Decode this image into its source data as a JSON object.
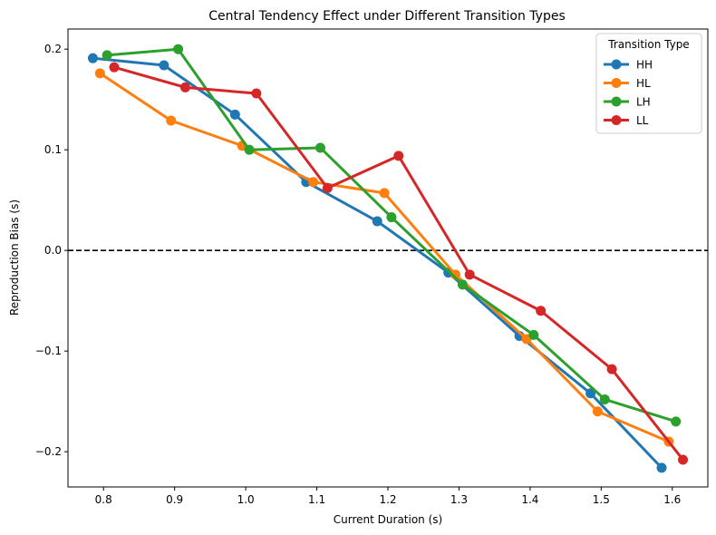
{
  "chart_data": {
    "type": "line",
    "title": "Central Tendency Effect under Different Transition Types",
    "xlabel": "Current Duration (s)",
    "ylabel": "Reproduction Bias (s)",
    "xlim": [
      0.75,
      1.65
    ],
    "ylim": [
      -0.235,
      0.22
    ],
    "xticks": [
      0.8,
      0.9,
      1.0,
      1.1,
      1.2,
      1.3,
      1.4,
      1.5,
      1.6
    ],
    "xtick_labels": [
      "0.8",
      "0.9",
      "1.0",
      "1.1",
      "1.2",
      "1.3",
      "1.4",
      "1.5",
      "1.6"
    ],
    "yticks": [
      -0.2,
      -0.1,
      0.0,
      0.1,
      0.2
    ],
    "ytick_labels": [
      "−0.2",
      "−0.1",
      "0.0",
      "0.1",
      "0.2"
    ],
    "grid": false,
    "reference_line": {
      "y": 0.0,
      "style": "dashed",
      "color": "#000000"
    },
    "legend": {
      "title": "Transition Type",
      "placement": "top-right"
    },
    "series": [
      {
        "name": "HH",
        "color": "#1f77b4",
        "x": [
          0.785,
          0.885,
          0.985,
          1.085,
          1.185,
          1.285,
          1.385,
          1.485,
          1.585
        ],
        "y": [
          0.191,
          0.184,
          0.135,
          0.068,
          0.029,
          -0.022,
          -0.085,
          -0.142,
          -0.216
        ]
      },
      {
        "name": "HL",
        "color": "#ff7f0e",
        "x": [
          0.795,
          0.895,
          0.995,
          1.095,
          1.195,
          1.295,
          1.395,
          1.495,
          1.595
        ],
        "y": [
          0.176,
          0.129,
          0.104,
          0.068,
          0.057,
          -0.024,
          -0.088,
          -0.16,
          -0.19
        ]
      },
      {
        "name": "LH",
        "color": "#2ca02c",
        "x": [
          0.805,
          0.905,
          1.005,
          1.105,
          1.205,
          1.305,
          1.405,
          1.505,
          1.605
        ],
        "y": [
          0.194,
          0.2,
          0.1,
          0.102,
          0.033,
          -0.034,
          -0.084,
          -0.148,
          -0.17
        ]
      },
      {
        "name": "LL",
        "color": "#d62728",
        "x": [
          0.815,
          0.915,
          1.015,
          1.115,
          1.215,
          1.315,
          1.415,
          1.515,
          1.615
        ],
        "y": [
          0.182,
          0.162,
          0.156,
          0.062,
          0.094,
          -0.024,
          -0.06,
          -0.118,
          -0.208
        ]
      }
    ]
  }
}
